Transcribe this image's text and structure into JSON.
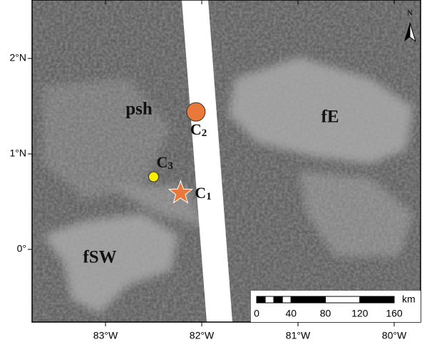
{
  "map": {
    "lat_ticks": [
      {
        "value": 2,
        "label": "2°N"
      },
      {
        "value": 1,
        "label": "1°N"
      },
      {
        "value": 0,
        "label": "0°"
      }
    ],
    "lon_ticks": [
      {
        "value": -83,
        "label": "83°W"
      },
      {
        "value": -82,
        "label": "82°W"
      },
      {
        "value": -81,
        "label": "81°W"
      },
      {
        "value": -80,
        "label": "80°W"
      }
    ],
    "regions": [
      "psh",
      "fE",
      "fSW"
    ],
    "sites": [
      {
        "name": "C",
        "sub": "1",
        "lon": -82.22,
        "lat": 0.59,
        "marker": "star",
        "color": "#e8793a"
      },
      {
        "name": "C",
        "sub": "2",
        "lon": -82.06,
        "lat": 1.44,
        "marker": "circle",
        "color": "#e8793a"
      },
      {
        "name": "C",
        "sub": "3",
        "lon": -82.5,
        "lat": 0.76,
        "marker": "circle",
        "color": "#ffee00"
      }
    ],
    "north": "N",
    "scale_bar": {
      "ticks": [
        0,
        40,
        80,
        120,
        160
      ],
      "unit": "km"
    }
  }
}
